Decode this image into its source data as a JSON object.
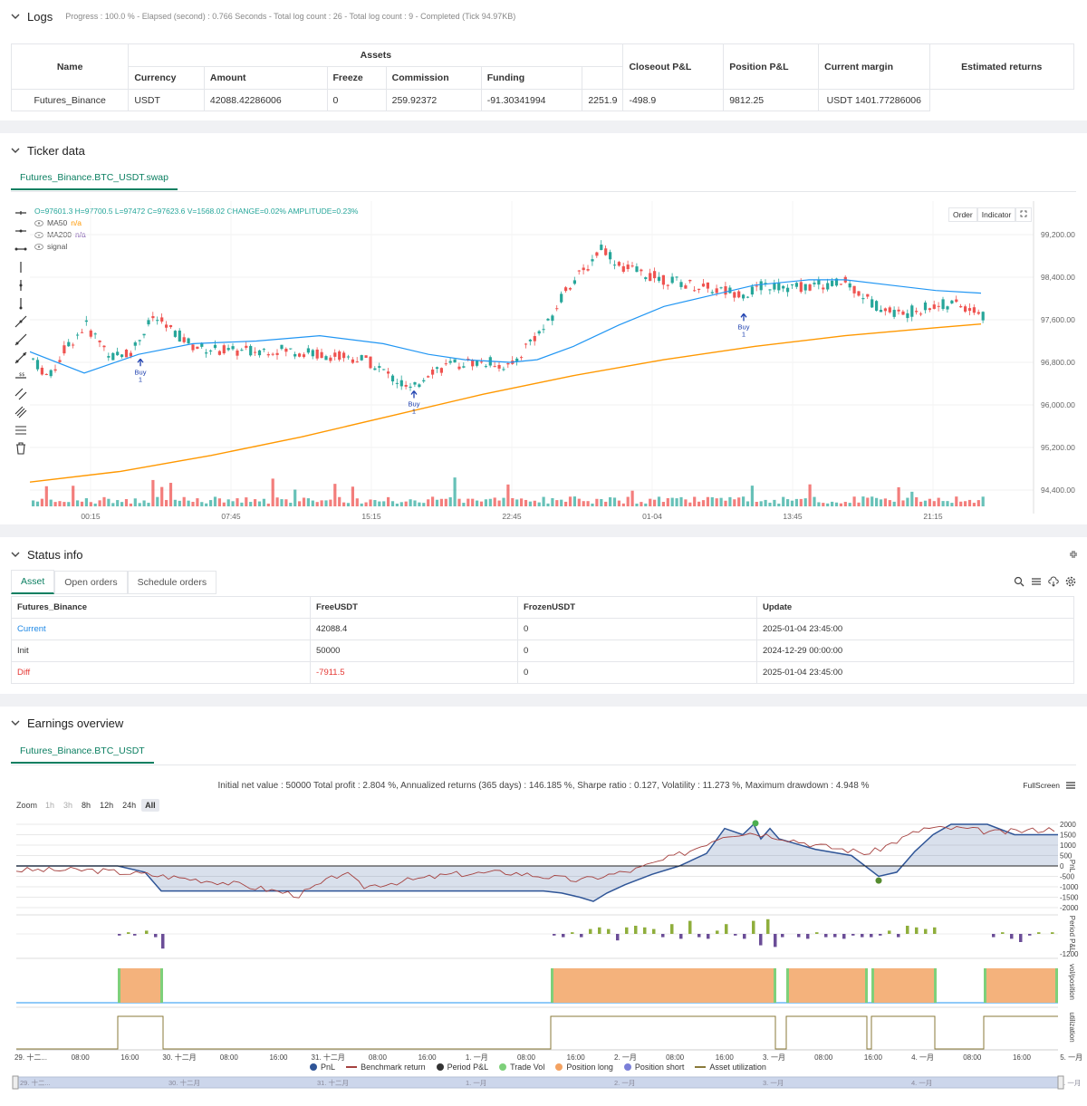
{
  "logs": {
    "title": "Logs",
    "progress": "Progress : 100.0 % - Elapsed (second) : 0.766  Seconds - Total log count : 26 - Total log count : 9 - Completed (Tick 94.97KB)"
  },
  "assets_table": {
    "group_header": "Assets",
    "headers": [
      "Name",
      "Currency",
      "Amount",
      "Freeze",
      "Commission",
      "Funding",
      "Closeout P&L",
      "Position P&L",
      "Current margin",
      "Estimated returns"
    ],
    "row": [
      "Futures_Binance",
      "USDT",
      "42088.42286006",
      "0",
      "259.92372",
      "-91.30341994",
      "2251.9",
      "-498.9",
      "9812.25",
      "USDT 1401.77286006"
    ]
  },
  "ticker": {
    "title": "Ticker data",
    "tab": "Futures_Binance.BTC_USDT.swap",
    "ohlc": "O=97601.3 H=97700.5 L=97472 C=97623.6 V=1568.02 CHANGE=0.02% AMPLITUDE=0.23%",
    "ma50_label": "MA50",
    "ma50_val": "n/a",
    "ma200_label": "MA200",
    "ma200_val": "n/a",
    "signal_label": "signal",
    "btn_order": "Order",
    "btn_indicator": "Indicator",
    "buy_label": "Buy",
    "buy_qty": "1",
    "price_ticks": [
      "99,200.00",
      "98,400.00",
      "97,600.00",
      "96,800.00",
      "96,000.00",
      "95,200.00",
      "94,400.00"
    ],
    "time_ticks": [
      "00:15",
      "07:45",
      "15:15",
      "22:45",
      "01-04",
      "13:45",
      "21:15"
    ]
  },
  "status": {
    "title": "Status info",
    "tabs": [
      "Asset",
      "Open orders",
      "Schedule orders"
    ],
    "headers": [
      "Futures_Binance",
      "FreeUSDT",
      "FrozenUSDT",
      "Update"
    ],
    "rows": [
      [
        "Current",
        "42088.4",
        "0",
        "2025-01-04 23:45:00"
      ],
      [
        "Init",
        "50000",
        "0",
        "2024-12-29 00:00:00"
      ],
      [
        "Diff",
        "-7911.5",
        "0",
        "2025-01-04 23:45:00"
      ]
    ]
  },
  "earnings": {
    "title": "Earnings overview",
    "tab": "Futures_Binance.BTC_USDT",
    "summary": "Initial net value : 50000  Total profit : 2.804 %, Annualized returns (365 days) : 146.185 %, Sharpe ratio : 0.127, Volatility : 11.273 %, Maximum drawdown : 4.948 %",
    "fullscreen": "FullScreen",
    "zoom_label": "Zoom",
    "zoom_buttons": [
      "1h",
      "3h",
      "8h",
      "12h",
      "24h",
      "All"
    ],
    "pnl_ticks": [
      "2000",
      "1500",
      "1000",
      "500",
      "0",
      "-500",
      "-1000",
      "-1500",
      "-2000"
    ],
    "period_tick": "-1200",
    "axis_labels": [
      "PnL",
      "Period P&L",
      "vol/position",
      "utilization"
    ],
    "x_ticks": [
      "29. 十二...",
      "08:00",
      "16:00",
      "30. 十二月",
      "08:00",
      "16:00",
      "31. 十二月",
      "08:00",
      "16:00",
      "1. 一月",
      "08:00",
      "16:00",
      "2. 一月",
      "08:00",
      "16:00",
      "3. 一月",
      "08:00",
      "16:00",
      "4. 一月",
      "08:00",
      "16:00",
      "5. 一月"
    ],
    "nav_ticks": [
      "29. 十二...",
      "30. 十二月",
      "31. 十二月",
      "1. 一月",
      "2. 一月",
      "3. 一月",
      "4. 一月",
      "5. 一月"
    ],
    "legend": [
      {
        "label": "PnL",
        "color": "#2f5597"
      },
      {
        "label": "Benchmark return",
        "color": "#a5413f"
      },
      {
        "label": "Period P&L",
        "color": "#333333"
      },
      {
        "label": "Trade Vol",
        "color": "#7ed07a"
      },
      {
        "label": "Position long",
        "color": "#f4a261"
      },
      {
        "label": "Position short",
        "color": "#7b7fd8"
      },
      {
        "label": "Asset utilization",
        "color": "#8a7a3a"
      }
    ]
  },
  "colors": {
    "accent": "#0b7f61",
    "up": "#26a69a",
    "down": "#ef5350",
    "ma50": "#2196f3",
    "ma200": "#ff9800",
    "diff": "#e53935",
    "link": "#1e88e5"
  }
}
